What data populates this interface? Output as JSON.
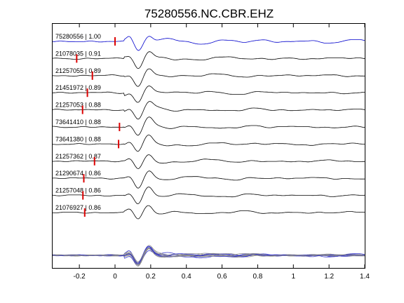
{
  "chart_data": {
    "type": "line",
    "title": "75280556.NC.CBR.EHZ",
    "xlabel": "",
    "ylabel": "",
    "xlim": [
      -0.35,
      1.4
    ],
    "xticks": [
      -0.2,
      0,
      0.2,
      0.4,
      0.6,
      0.8,
      1,
      1.2,
      1.4
    ],
    "xtick_labels": [
      "-0.2",
      "0",
      "0.2",
      "0.4",
      "0.6",
      "0.8",
      "1",
      "1.2",
      "1.4"
    ],
    "grid": false,
    "legend": "none",
    "colors": {
      "master": "#0000cc",
      "trace": "#000000",
      "pick": "#dd0000",
      "stack_gray": "#888888",
      "stack_blue": "#2222cc",
      "axes": "#000000"
    },
    "traces": [
      {
        "label": "75280556 | 1.00",
        "pick_time": 0.0,
        "master": true
      },
      {
        "label": "21078035 | 0.91",
        "pick_time": -0.215,
        "master": false
      },
      {
        "label": "21257055 | 0.89",
        "pick_time": -0.127,
        "master": false
      },
      {
        "label": "21451972 | 0.89",
        "pick_time": -0.155,
        "master": false
      },
      {
        "label": "21257053 | 0.88",
        "pick_time": -0.182,
        "master": false
      },
      {
        "label": "73641410 | 0.88",
        "pick_time": 0.025,
        "master": false
      },
      {
        "label": "73641380 | 0.88",
        "pick_time": 0.02,
        "master": false
      },
      {
        "label": "21257362 | 0.87",
        "pick_time": -0.115,
        "master": false
      },
      {
        "label": "21290674 | 0.86",
        "pick_time": -0.175,
        "master": false
      },
      {
        "label": "21257048 | 0.86",
        "pick_time": -0.18,
        "master": false
      },
      {
        "label": "21076927 | 0.86",
        "pick_time": -0.17,
        "master": false
      }
    ],
    "stack": {
      "description_free": true,
      "overlay": true
    }
  }
}
